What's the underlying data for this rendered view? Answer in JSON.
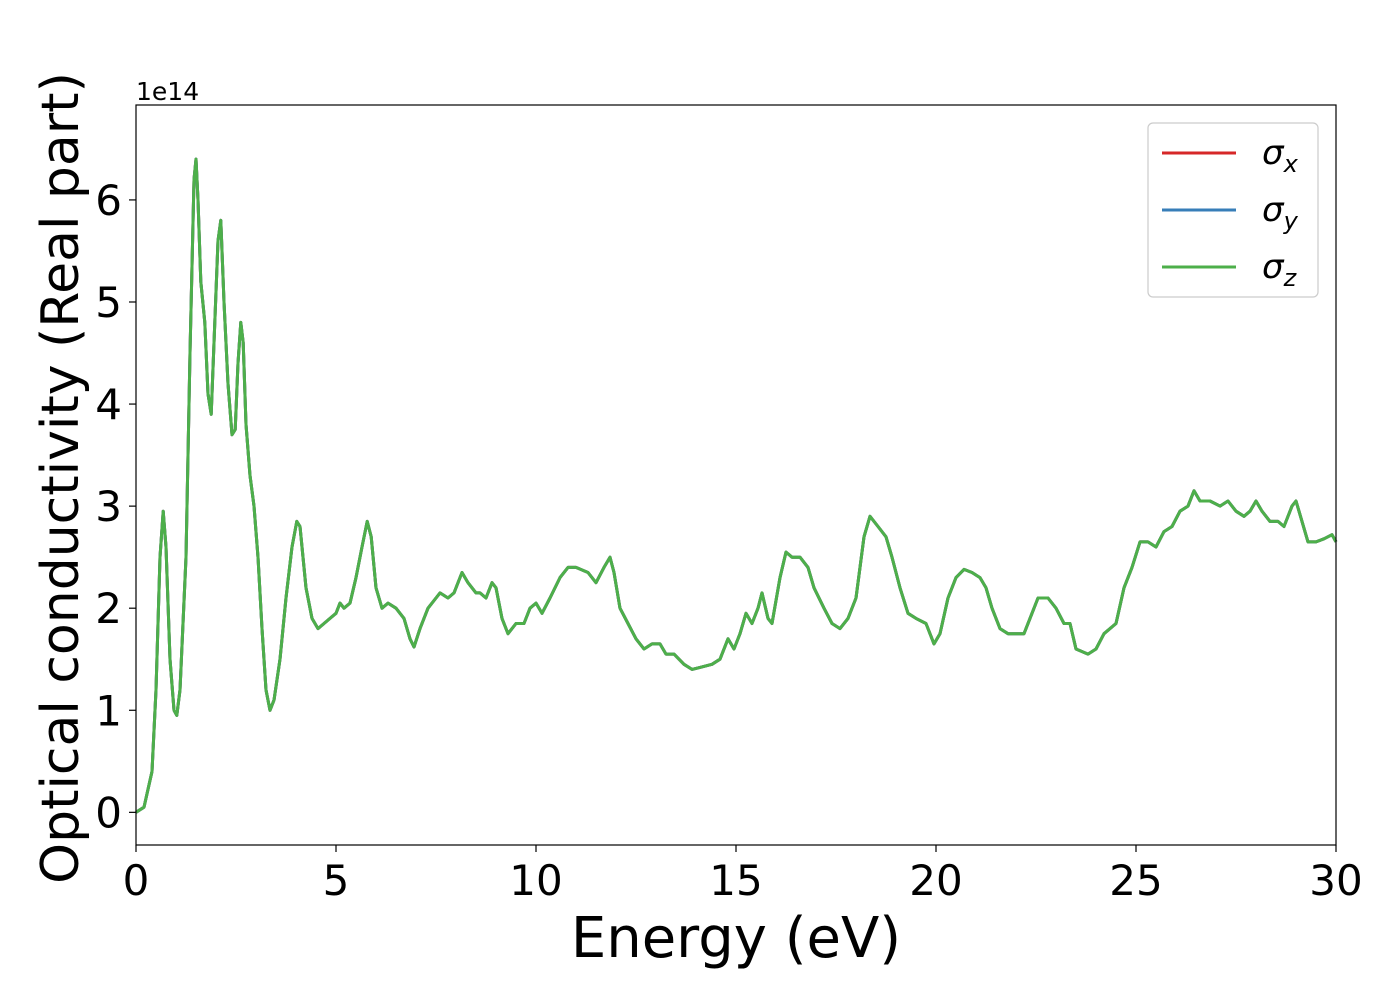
{
  "chart_data": {
    "type": "line",
    "xlabel": "Energy (eV)",
    "ylabel": "Optical conductivity (Real part)",
    "offset_text": "1e14",
    "xlim": [
      0,
      30
    ],
    "ylim": [
      -0.32,
      6.93
    ],
    "xticks": [
      0,
      5,
      10,
      15,
      20,
      25,
      30
    ],
    "yticks": [
      0,
      1,
      2,
      3,
      4,
      5,
      6
    ],
    "legend": "upper right",
    "x": [
      0,
      0.2,
      0.4,
      0.5,
      0.6,
      0.68,
      0.75,
      0.85,
      0.95,
      1.02,
      1.1,
      1.25,
      1.35,
      1.45,
      1.5,
      1.55,
      1.62,
      1.72,
      1.8,
      1.88,
      1.95,
      2.05,
      2.12,
      2.2,
      2.3,
      2.4,
      2.48,
      2.55,
      2.62,
      2.68,
      2.75,
      2.85,
      2.95,
      3.05,
      3.15,
      3.25,
      3.35,
      3.45,
      3.6,
      3.75,
      3.9,
      4.02,
      4.1,
      4.25,
      4.4,
      4.55,
      4.7,
      4.85,
      5.0,
      5.1,
      5.2,
      5.35,
      5.5,
      5.65,
      5.78,
      5.88,
      6.0,
      6.15,
      6.3,
      6.5,
      6.7,
      6.85,
      6.95,
      7.1,
      7.3,
      7.5,
      7.6,
      7.8,
      7.95,
      8.15,
      8.3,
      8.5,
      8.6,
      8.75,
      8.9,
      9.0,
      9.15,
      9.3,
      9.5,
      9.7,
      9.85,
      10.0,
      10.15,
      10.35,
      10.6,
      10.8,
      11.0,
      11.3,
      11.5,
      11.7,
      11.85,
      11.95,
      12.1,
      12.3,
      12.5,
      12.7,
      12.9,
      13.1,
      13.25,
      13.45,
      13.7,
      13.9,
      14.1,
      14.4,
      14.6,
      14.8,
      14.95,
      15.1,
      15.25,
      15.4,
      15.55,
      15.65,
      15.8,
      15.9,
      16.1,
      16.25,
      16.4,
      16.6,
      16.8,
      16.95,
      17.2,
      17.4,
      17.6,
      17.8,
      18.0,
      18.2,
      18.35,
      18.55,
      18.75,
      18.9,
      19.1,
      19.3,
      19.5,
      19.75,
      19.95,
      20.1,
      20.3,
      20.5,
      20.7,
      20.9,
      21.1,
      21.25,
      21.4,
      21.6,
      21.8,
      22.0,
      22.2,
      22.4,
      22.55,
      22.8,
      23.0,
      23.2,
      23.35,
      23.5,
      23.8,
      24.0,
      24.2,
      24.5,
      24.7,
      24.9,
      25.1,
      25.3,
      25.5,
      25.7,
      25.9,
      26.1,
      26.3,
      26.45,
      26.6,
      26.85,
      27.1,
      27.3,
      27.5,
      27.7,
      27.85,
      28.0,
      28.15,
      28.35,
      28.55,
      28.7,
      28.9,
      29.0,
      29.15,
      29.3,
      29.5,
      29.7,
      29.9,
      30.0
    ],
    "series": [
      {
        "name": "σx",
        "color": "#d62728",
        "values": [
          0,
          0.05,
          0.4,
          1.2,
          2.5,
          2.95,
          2.6,
          1.5,
          1.0,
          0.95,
          1.2,
          2.5,
          4.5,
          6.2,
          6.4,
          6.0,
          5.2,
          4.8,
          4.1,
          3.9,
          4.6,
          5.6,
          5.8,
          5.0,
          4.2,
          3.7,
          3.75,
          4.4,
          4.8,
          4.6,
          3.8,
          3.3,
          3.0,
          2.5,
          1.8,
          1.2,
          1.0,
          1.1,
          1.5,
          2.1,
          2.6,
          2.85,
          2.8,
          2.2,
          1.9,
          1.8,
          1.85,
          1.9,
          1.95,
          2.05,
          2.0,
          2.05,
          2.3,
          2.6,
          2.85,
          2.7,
          2.2,
          2.0,
          2.05,
          2.0,
          1.9,
          1.7,
          1.62,
          1.8,
          2.0,
          2.1,
          2.15,
          2.1,
          2.15,
          2.35,
          2.25,
          2.15,
          2.15,
          2.1,
          2.25,
          2.2,
          1.9,
          1.75,
          1.85,
          1.85,
          2.0,
          2.05,
          1.95,
          2.1,
          2.3,
          2.4,
          2.4,
          2.35,
          2.25,
          2.4,
          2.5,
          2.35,
          2.0,
          1.85,
          1.7,
          1.6,
          1.65,
          1.65,
          1.55,
          1.55,
          1.45,
          1.4,
          1.42,
          1.45,
          1.5,
          1.7,
          1.6,
          1.75,
          1.95,
          1.85,
          2.0,
          2.15,
          1.9,
          1.85,
          2.3,
          2.55,
          2.5,
          2.5,
          2.4,
          2.2,
          2.0,
          1.85,
          1.8,
          1.9,
          2.1,
          2.7,
          2.9,
          2.8,
          2.7,
          2.5,
          2.2,
          1.95,
          1.9,
          1.85,
          1.65,
          1.75,
          2.1,
          2.3,
          2.38,
          2.35,
          2.3,
          2.2,
          2.0,
          1.8,
          1.75,
          1.75,
          1.75,
          1.95,
          2.1,
          2.1,
          2.0,
          1.85,
          1.85,
          1.6,
          1.55,
          1.6,
          1.75,
          1.85,
          2.2,
          2.4,
          2.65,
          2.65,
          2.6,
          2.75,
          2.8,
          2.95,
          3.0,
          3.15,
          3.05,
          3.05,
          3.0,
          3.05,
          2.95,
          2.9,
          2.95,
          3.05,
          2.95,
          2.85,
          2.85,
          2.8,
          3.0,
          3.05,
          2.85,
          2.65,
          2.65,
          2.68,
          2.72,
          2.65
        ]
      },
      {
        "name": "σy",
        "color": "#377eb8",
        "values": [
          0,
          0.05,
          0.4,
          1.2,
          2.5,
          2.95,
          2.6,
          1.5,
          1.0,
          0.95,
          1.2,
          2.5,
          4.5,
          6.2,
          6.4,
          6.0,
          5.2,
          4.8,
          4.1,
          3.9,
          4.6,
          5.6,
          5.8,
          5.0,
          4.2,
          3.7,
          3.75,
          4.4,
          4.8,
          4.6,
          3.8,
          3.3,
          3.0,
          2.5,
          1.8,
          1.2,
          1.0,
          1.1,
          1.5,
          2.1,
          2.6,
          2.85,
          2.8,
          2.2,
          1.9,
          1.8,
          1.85,
          1.9,
          1.95,
          2.05,
          2.0,
          2.05,
          2.3,
          2.6,
          2.85,
          2.7,
          2.2,
          2.0,
          2.05,
          2.0,
          1.9,
          1.7,
          1.62,
          1.8,
          2.0,
          2.1,
          2.15,
          2.1,
          2.15,
          2.35,
          2.25,
          2.15,
          2.15,
          2.1,
          2.25,
          2.2,
          1.9,
          1.75,
          1.85,
          1.85,
          2.0,
          2.05,
          1.95,
          2.1,
          2.3,
          2.4,
          2.4,
          2.35,
          2.25,
          2.4,
          2.5,
          2.35,
          2.0,
          1.85,
          1.7,
          1.6,
          1.65,
          1.65,
          1.55,
          1.55,
          1.45,
          1.4,
          1.42,
          1.45,
          1.5,
          1.7,
          1.6,
          1.75,
          1.95,
          1.85,
          2.0,
          2.15,
          1.9,
          1.85,
          2.3,
          2.55,
          2.5,
          2.5,
          2.4,
          2.2,
          2.0,
          1.85,
          1.8,
          1.9,
          2.1,
          2.7,
          2.9,
          2.8,
          2.7,
          2.5,
          2.2,
          1.95,
          1.9,
          1.85,
          1.65,
          1.75,
          2.1,
          2.3,
          2.38,
          2.35,
          2.3,
          2.2,
          2.0,
          1.8,
          1.75,
          1.75,
          1.75,
          1.95,
          2.1,
          2.1,
          2.0,
          1.85,
          1.85,
          1.6,
          1.55,
          1.6,
          1.75,
          1.85,
          2.2,
          2.4,
          2.65,
          2.65,
          2.6,
          2.75,
          2.8,
          2.95,
          3.0,
          3.15,
          3.05,
          3.05,
          3.0,
          3.05,
          2.95,
          2.9,
          2.95,
          3.05,
          2.95,
          2.85,
          2.85,
          2.8,
          3.0,
          3.05,
          2.85,
          2.65,
          2.65,
          2.68,
          2.72,
          2.65
        ]
      },
      {
        "name": "σz",
        "color": "#4daf4a",
        "values": [
          0,
          0.05,
          0.4,
          1.2,
          2.5,
          2.95,
          2.6,
          1.5,
          1.0,
          0.95,
          1.2,
          2.5,
          4.5,
          6.2,
          6.4,
          6.0,
          5.2,
          4.8,
          4.1,
          3.9,
          4.6,
          5.6,
          5.8,
          5.0,
          4.2,
          3.7,
          3.75,
          4.4,
          4.8,
          4.6,
          3.8,
          3.3,
          3.0,
          2.5,
          1.8,
          1.2,
          1.0,
          1.1,
          1.5,
          2.1,
          2.6,
          2.85,
          2.8,
          2.2,
          1.9,
          1.8,
          1.85,
          1.9,
          1.95,
          2.05,
          2.0,
          2.05,
          2.3,
          2.6,
          2.85,
          2.7,
          2.2,
          2.0,
          2.05,
          2.0,
          1.9,
          1.7,
          1.62,
          1.8,
          2.0,
          2.1,
          2.15,
          2.1,
          2.15,
          2.35,
          2.25,
          2.15,
          2.15,
          2.1,
          2.25,
          2.2,
          1.9,
          1.75,
          1.85,
          1.85,
          2.0,
          2.05,
          1.95,
          2.1,
          2.3,
          2.4,
          2.4,
          2.35,
          2.25,
          2.4,
          2.5,
          2.35,
          2.0,
          1.85,
          1.7,
          1.6,
          1.65,
          1.65,
          1.55,
          1.55,
          1.45,
          1.4,
          1.42,
          1.45,
          1.5,
          1.7,
          1.6,
          1.75,
          1.95,
          1.85,
          2.0,
          2.15,
          1.9,
          1.85,
          2.3,
          2.55,
          2.5,
          2.5,
          2.4,
          2.2,
          2.0,
          1.85,
          1.8,
          1.9,
          2.1,
          2.7,
          2.9,
          2.8,
          2.7,
          2.5,
          2.2,
          1.95,
          1.9,
          1.85,
          1.65,
          1.75,
          2.1,
          2.3,
          2.38,
          2.35,
          2.3,
          2.2,
          2.0,
          1.8,
          1.75,
          1.75,
          1.75,
          1.95,
          2.1,
          2.1,
          2.0,
          1.85,
          1.85,
          1.6,
          1.55,
          1.6,
          1.75,
          1.85,
          2.2,
          2.4,
          2.65,
          2.65,
          2.6,
          2.75,
          2.8,
          2.95,
          3.0,
          3.15,
          3.05,
          3.05,
          3.0,
          3.05,
          2.95,
          2.9,
          2.95,
          3.05,
          2.95,
          2.85,
          2.85,
          2.8,
          3.0,
          3.05,
          2.85,
          2.65,
          2.65,
          2.68,
          2.72,
          2.65
        ]
      }
    ]
  }
}
